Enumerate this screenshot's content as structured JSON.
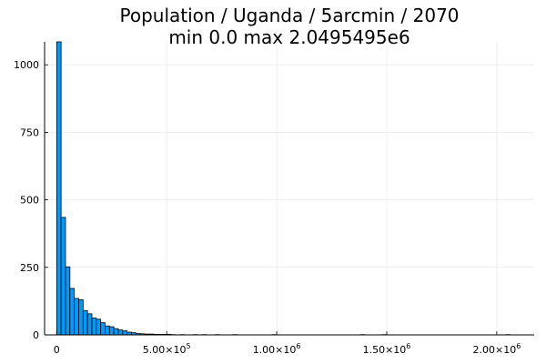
{
  "chart_data": {
    "type": "bar",
    "title": "Population / Uganda / 5arcmin / 2070",
    "subtitle": "min 0.0  max 2.0495495e6",
    "xlabel": "",
    "ylabel": "",
    "xlim": [
      -55000,
      2170000
    ],
    "ylim": [
      0,
      1085
    ],
    "grid": true,
    "legend": "none",
    "bar_color": "#009af9",
    "bin_width": 20000,
    "bins": [
      {
        "x0": 0,
        "x1": 20000,
        "value": 1085
      },
      {
        "x0": 20000,
        "x1": 40000,
        "value": 435
      },
      {
        "x0": 40000,
        "x1": 60000,
        "value": 252
      },
      {
        "x0": 60000,
        "x1": 80000,
        "value": 172
      },
      {
        "x0": 80000,
        "x1": 100000,
        "value": 135
      },
      {
        "x0": 100000,
        "x1": 120000,
        "value": 130
      },
      {
        "x0": 120000,
        "x1": 140000,
        "value": 90
      },
      {
        "x0": 140000,
        "x1": 160000,
        "value": 78
      },
      {
        "x0": 160000,
        "x1": 180000,
        "value": 63
      },
      {
        "x0": 180000,
        "x1": 200000,
        "value": 58
      },
      {
        "x0": 200000,
        "x1": 220000,
        "value": 45
      },
      {
        "x0": 220000,
        "x1": 240000,
        "value": 33
      },
      {
        "x0": 240000,
        "x1": 260000,
        "value": 30
      },
      {
        "x0": 260000,
        "x1": 280000,
        "value": 23
      },
      {
        "x0": 280000,
        "x1": 300000,
        "value": 18
      },
      {
        "x0": 300000,
        "x1": 320000,
        "value": 15
      },
      {
        "x0": 320000,
        "x1": 340000,
        "value": 10
      },
      {
        "x0": 340000,
        "x1": 360000,
        "value": 8
      },
      {
        "x0": 360000,
        "x1": 380000,
        "value": 5
      },
      {
        "x0": 380000,
        "x1": 400000,
        "value": 4
      },
      {
        "x0": 400000,
        "x1": 420000,
        "value": 3
      },
      {
        "x0": 420000,
        "x1": 440000,
        "value": 3
      },
      {
        "x0": 440000,
        "x1": 460000,
        "value": 2
      },
      {
        "x0": 460000,
        "x1": 480000,
        "value": 2
      },
      {
        "x0": 480000,
        "x1": 500000,
        "value": 2
      },
      {
        "x0": 500000,
        "x1": 520000,
        "value": 2
      },
      {
        "x0": 520000,
        "x1": 540000,
        "value": 1
      },
      {
        "x0": 560000,
        "x1": 580000,
        "value": 1
      },
      {
        "x0": 620000,
        "x1": 640000,
        "value": 1
      },
      {
        "x0": 660000,
        "x1": 680000,
        "value": 1
      },
      {
        "x0": 720000,
        "x1": 740000,
        "value": 1
      },
      {
        "x0": 800000,
        "x1": 820000,
        "value": 1
      },
      {
        "x0": 980000,
        "x1": 1000000,
        "value": 1
      },
      {
        "x0": 1380000,
        "x1": 1400000,
        "value": 1
      },
      {
        "x0": 1480000,
        "x1": 1500000,
        "value": 1
      },
      {
        "x0": 2040000,
        "x1": 2060000,
        "value": 1
      }
    ],
    "x_ticks": [
      {
        "value": 0,
        "mantissa": "0",
        "exp": ""
      },
      {
        "value": 500000,
        "mantissa": "5.00×10",
        "exp": "5"
      },
      {
        "value": 1000000,
        "mantissa": "1.00×10",
        "exp": "6"
      },
      {
        "value": 1500000,
        "mantissa": "1.50×10",
        "exp": "6"
      },
      {
        "value": 2000000,
        "mantissa": "2.00×10",
        "exp": "6"
      }
    ],
    "y_ticks": [
      {
        "value": 0,
        "label": "0"
      },
      {
        "value": 250,
        "label": "250"
      },
      {
        "value": 500,
        "label": "500"
      },
      {
        "value": 750,
        "label": "750"
      },
      {
        "value": 1000,
        "label": "1000"
      }
    ]
  }
}
